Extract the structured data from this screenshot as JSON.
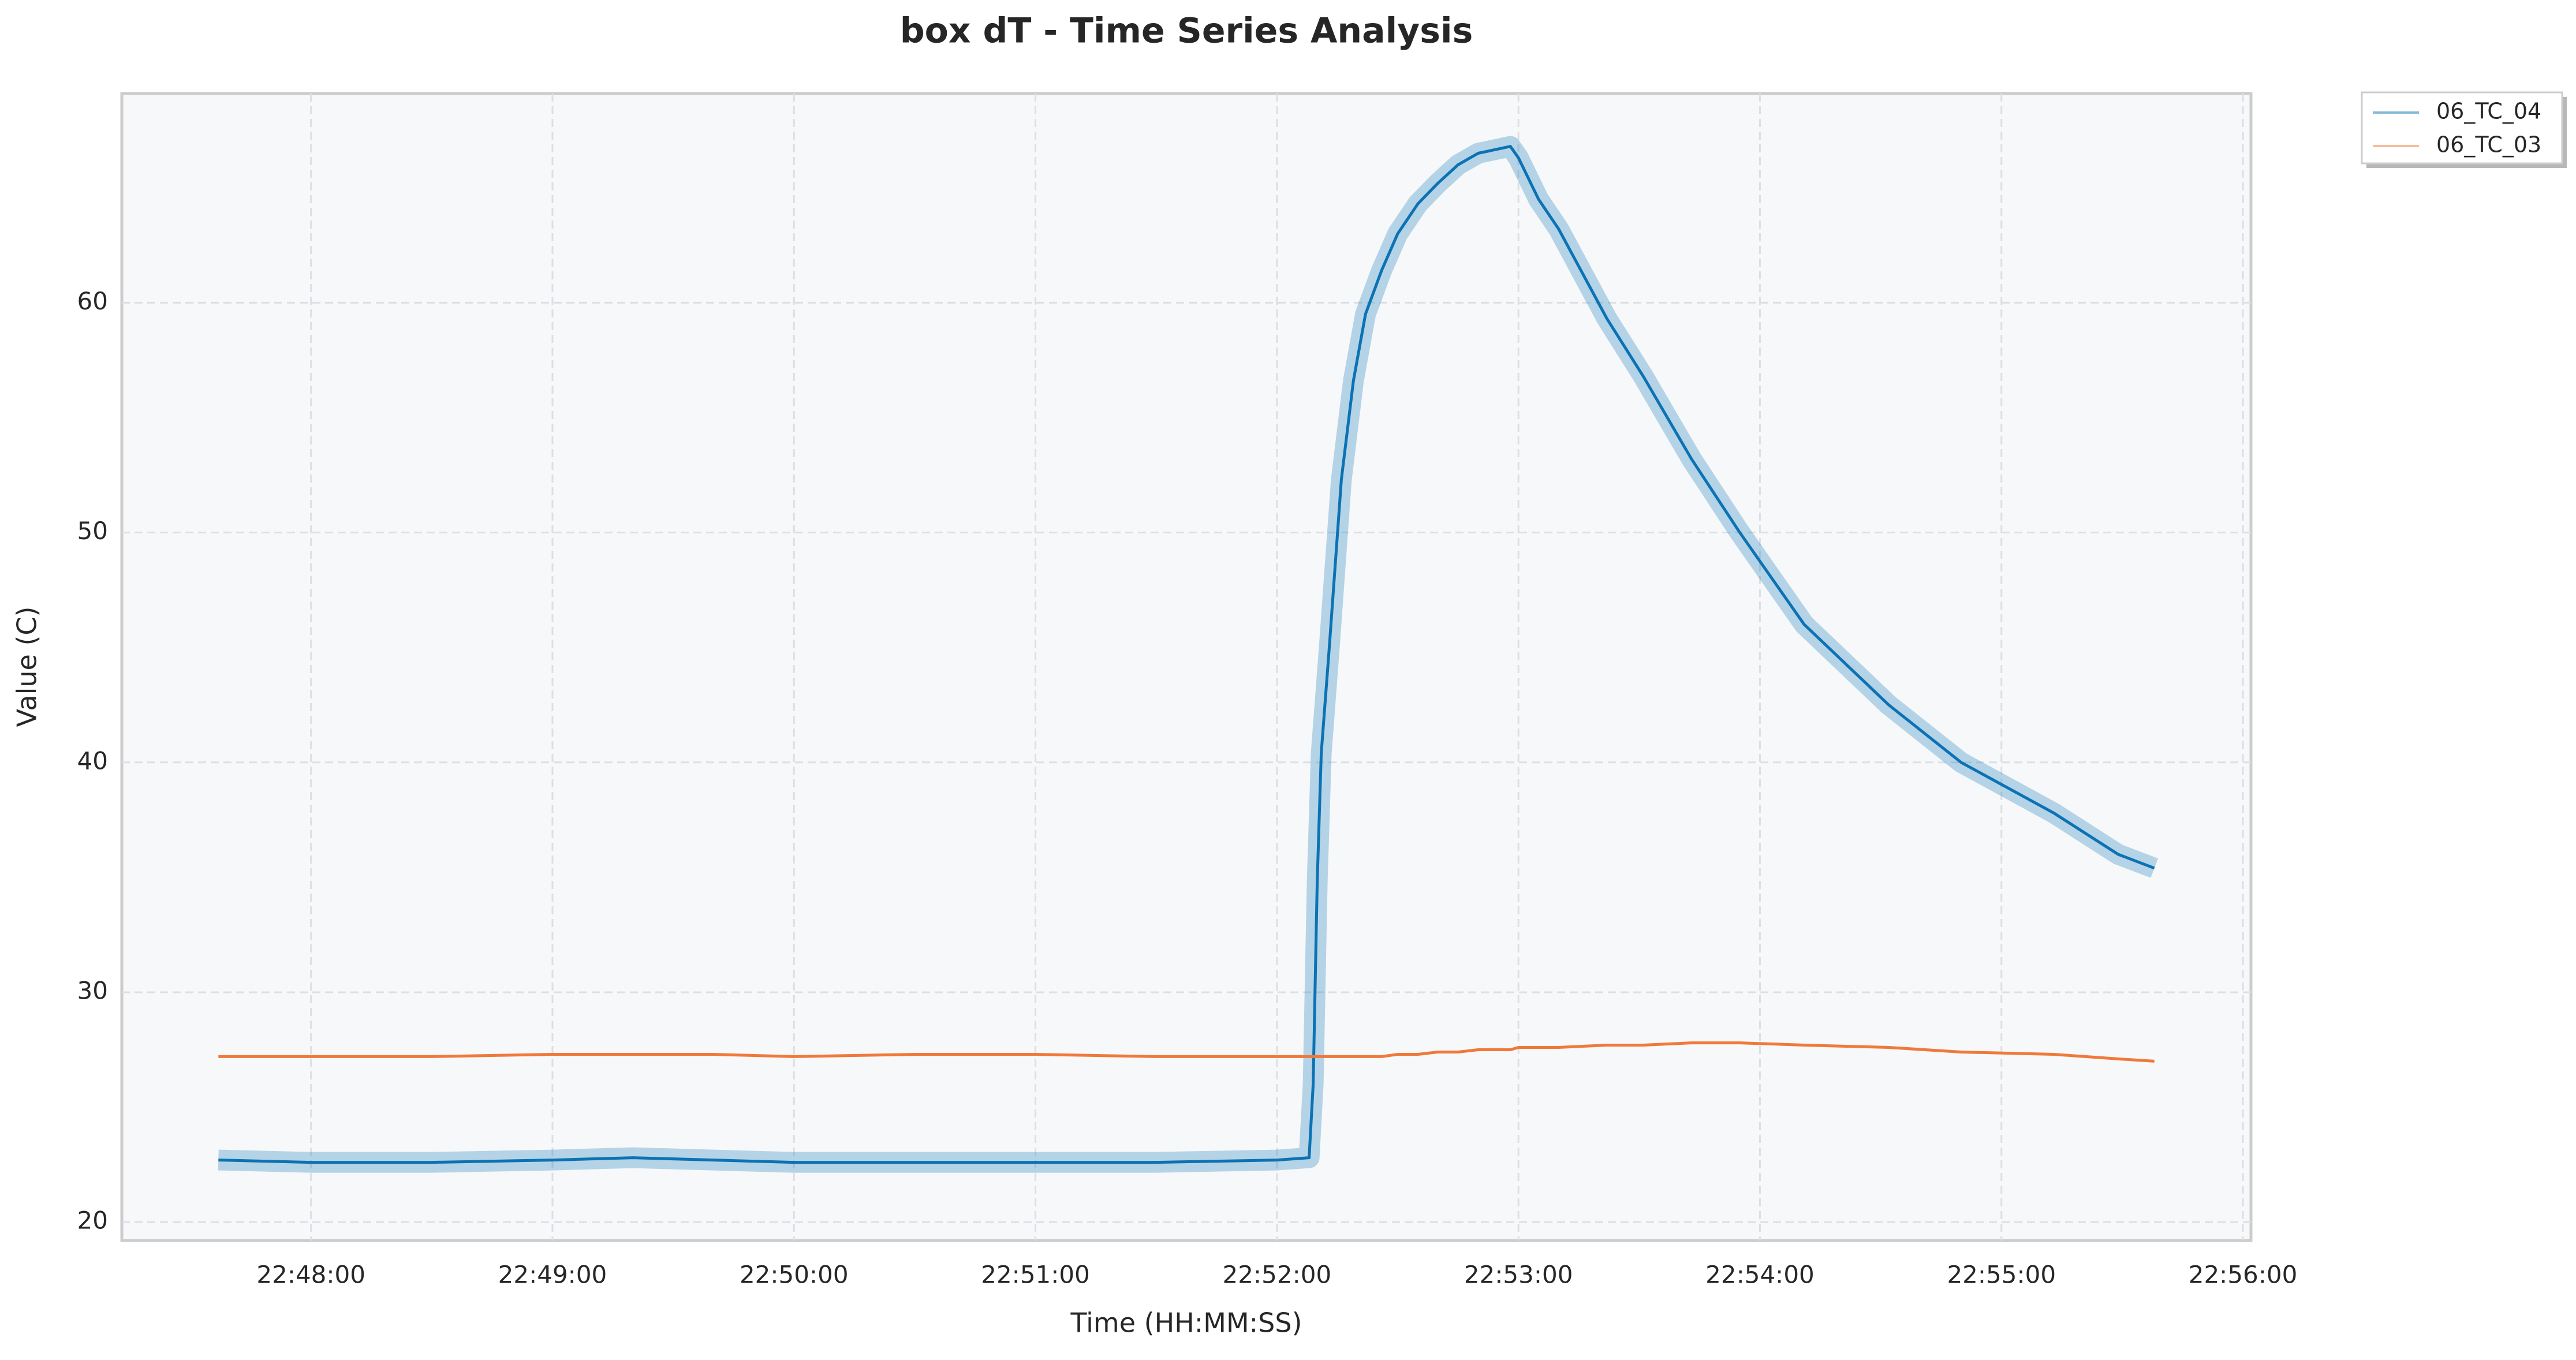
{
  "chart_data": {
    "type": "line",
    "title": "box dT - Time Series Analysis",
    "x_label": "Time (HH:MM:SS)",
    "y_label": "Value (C)",
    "x": [
      "22:47:37",
      "22:48:00",
      "22:48:30",
      "22:49:00",
      "22:49:20",
      "22:49:40",
      "22:50:00",
      "22:50:30",
      "22:51:00",
      "22:51:30",
      "22:52:00",
      "22:52:08",
      "22:52:09",
      "22:52:10",
      "22:52:11",
      "22:52:13",
      "22:52:16",
      "22:52:19",
      "22:52:22",
      "22:52:26",
      "22:52:30",
      "22:52:35",
      "22:52:40",
      "22:52:45",
      "22:52:50",
      "22:52:58",
      "22:53:00",
      "22:53:05",
      "22:53:10",
      "22:53:22",
      "22:53:31",
      "22:53:43",
      "22:53:55",
      "22:54:11",
      "22:54:32",
      "22:54:50",
      "22:55:13",
      "22:55:29",
      "22:55:38"
    ],
    "xlim": [
      "22:47:13",
      "22:56:02"
    ],
    "xticks": [
      "22:48:00",
      "22:49:00",
      "22:50:00",
      "22:51:00",
      "22:52:00",
      "22:53:00",
      "22:54:00",
      "22:55:00",
      "22:56:00"
    ],
    "ylim": [
      19.2,
      69.1
    ],
    "yticks": [
      20,
      30,
      40,
      50,
      60
    ],
    "grid": true,
    "legend": "outside upper right",
    "series": [
      {
        "name": "06_TC_04",
        "color": "#0b72b4",
        "values": [
          22.7,
          22.6,
          22.6,
          22.7,
          22.8,
          22.7,
          22.6,
          22.6,
          22.6,
          22.6,
          22.7,
          22.8,
          26.0,
          34.8,
          40.4,
          45.0,
          52.3,
          56.6,
          59.5,
          61.4,
          63.0,
          64.3,
          65.2,
          66.0,
          66.5,
          66.8,
          66.3,
          64.5,
          63.2,
          59.3,
          56.8,
          53.2,
          50.0,
          46.0,
          42.5,
          40.0,
          37.8,
          36.0,
          35.4
        ]
      },
      {
        "name": "06_TC_03",
        "color": "#f0793a",
        "values": [
          27.2,
          27.2,
          27.2,
          27.3,
          27.3,
          27.3,
          27.2,
          27.3,
          27.3,
          27.2,
          27.2,
          27.2,
          27.2,
          27.2,
          27.2,
          27.2,
          27.2,
          27.2,
          27.2,
          27.2,
          27.3,
          27.3,
          27.4,
          27.4,
          27.5,
          27.5,
          27.6,
          27.6,
          27.6,
          27.7,
          27.7,
          27.8,
          27.8,
          27.7,
          27.6,
          27.4,
          27.3,
          27.1,
          27.0
        ]
      }
    ]
  }
}
